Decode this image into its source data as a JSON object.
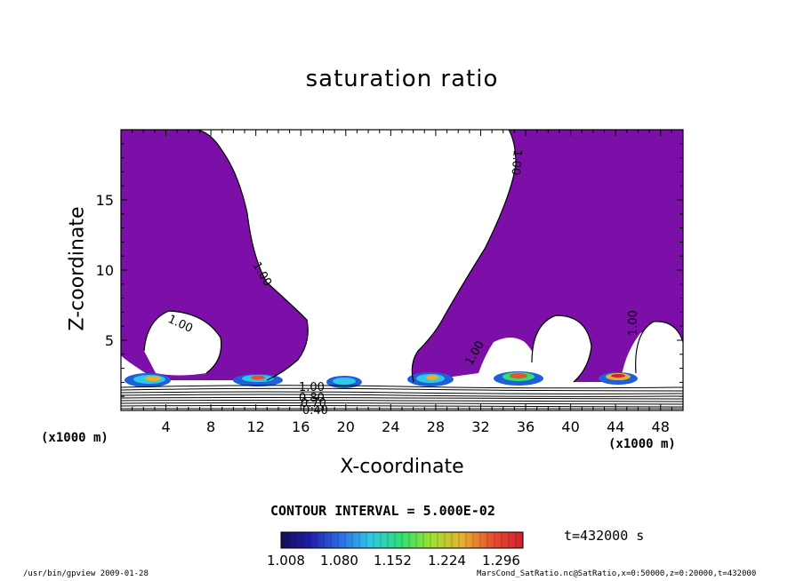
{
  "chart_data": {
    "type": "contour",
    "title": "saturation ratio",
    "xlabel": "X-coordinate",
    "ylabel": "Z-coordinate",
    "x_unit_label": "(x1000 m)",
    "x_ticks": [
      4,
      8,
      12,
      16,
      20,
      24,
      28,
      32,
      36,
      40,
      44,
      48
    ],
    "y_ticks": [
      5,
      10,
      15
    ],
    "xlim": [
      0,
      50
    ],
    "ylim": [
      0,
      20
    ],
    "contour_labels": [
      "1.00",
      "1.00",
      "1.00",
      "1.00",
      "1.00",
      "1.00",
      "0.80",
      "0.70",
      "0.40"
    ],
    "fill_color": "#7b0fa8",
    "contour_interval_text": "CONTOUR INTERVAL = 5.000E-02",
    "colorbar": {
      "tick_labels": [
        "1.008",
        "1.080",
        "1.152",
        "1.224",
        "1.296"
      ],
      "colors": [
        "#1a0a5a",
        "#1f1fa8",
        "#2f6fe8",
        "#30c8e8",
        "#30e070",
        "#a0e030",
        "#e8b030",
        "#e85030",
        "#d02030"
      ]
    },
    "time_label": "t=432000 s"
  },
  "footer": {
    "left": "/usr/bin/gpview   2009-01-28",
    "right": "MarsCond_SatRatio.nc@SatRatio,x=0:50000,z=0:20000,t=432000"
  }
}
